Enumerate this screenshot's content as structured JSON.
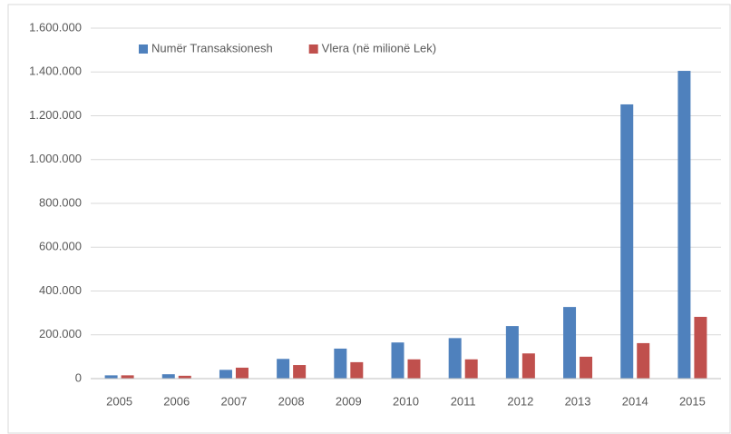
{
  "chart_data": {
    "type": "bar",
    "categories": [
      "2005",
      "2006",
      "2007",
      "2008",
      "2009",
      "2010",
      "2011",
      "2012",
      "2013",
      "2014",
      "2015"
    ],
    "series": [
      {
        "name": "Numër Transaksionesh",
        "color": "#4f81bd",
        "values": [
          15000,
          20000,
          40000,
          90000,
          137000,
          165000,
          185000,
          240000,
          327000,
          1252000,
          1405000
        ]
      },
      {
        "name": "Vlera (në milionë Lek)",
        "color": "#c0504d",
        "values": [
          15000,
          13000,
          50000,
          62000,
          75000,
          88000,
          88000,
          115000,
          100000,
          162000,
          282000
        ]
      }
    ],
    "ylim": [
      0,
      1600000
    ],
    "yticks": [
      0,
      {
        "value": 200000,
        "label": "200.000"
      },
      {
        "value": 400000,
        "label": "400.000"
      },
      {
        "value": 600000,
        "label": "600.000"
      },
      {
        "value": 800000,
        "label": "800.000"
      },
      {
        "value": 1000000,
        "label": "1.000.000"
      },
      {
        "value": 1200000,
        "label": "1.200.000"
      },
      {
        "value": 1400000,
        "label": "1.400.000"
      },
      {
        "value": 1600000,
        "label": "1.600.000"
      }
    ],
    "grid": true,
    "legend": "top"
  }
}
